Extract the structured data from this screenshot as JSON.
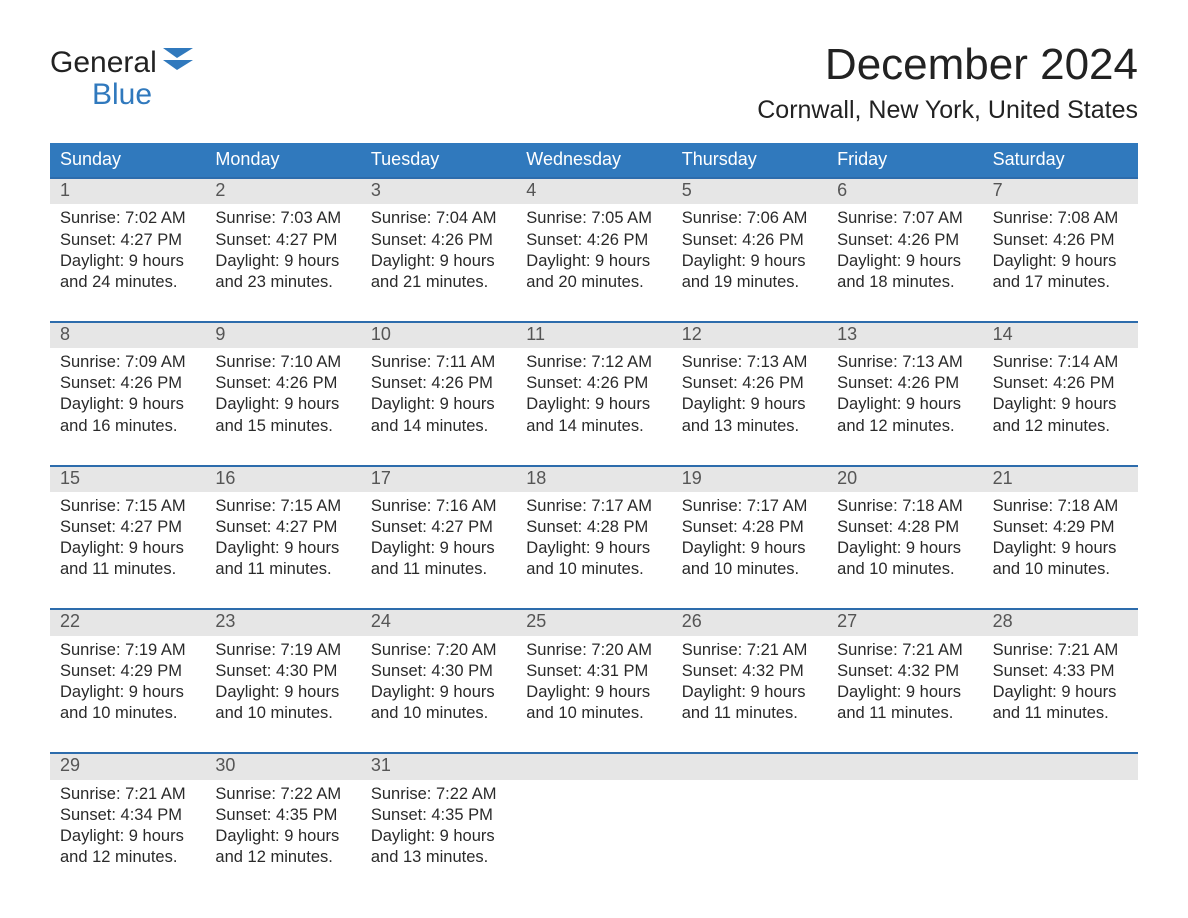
{
  "colors": {
    "accent": "#3079bd",
    "row_top_border": "#2d6cac",
    "date_bg": "#e6e6e6",
    "background": "#ffffff",
    "text": "#333333"
  },
  "typography": {
    "font_family": "Segoe UI / Arial",
    "month_title_fontsize": 44,
    "location_fontsize": 25,
    "dow_fontsize": 18,
    "cell_fontsize": 16.5
  },
  "logo": {
    "word1": "General",
    "word2": "Blue"
  },
  "header": {
    "month_title": "December 2024",
    "location": "Cornwall, New York, United States"
  },
  "days_of_week": [
    "Sunday",
    "Monday",
    "Tuesday",
    "Wednesday",
    "Thursday",
    "Friday",
    "Saturday"
  ],
  "weeks": [
    [
      {
        "date": "1",
        "sunrise": "Sunrise: 7:02 AM",
        "sunset": "Sunset: 4:27 PM",
        "day1": "Daylight: 9 hours",
        "day2": "and 24 minutes."
      },
      {
        "date": "2",
        "sunrise": "Sunrise: 7:03 AM",
        "sunset": "Sunset: 4:27 PM",
        "day1": "Daylight: 9 hours",
        "day2": "and 23 minutes."
      },
      {
        "date": "3",
        "sunrise": "Sunrise: 7:04 AM",
        "sunset": "Sunset: 4:26 PM",
        "day1": "Daylight: 9 hours",
        "day2": "and 21 minutes."
      },
      {
        "date": "4",
        "sunrise": "Sunrise: 7:05 AM",
        "sunset": "Sunset: 4:26 PM",
        "day1": "Daylight: 9 hours",
        "day2": "and 20 minutes."
      },
      {
        "date": "5",
        "sunrise": "Sunrise: 7:06 AM",
        "sunset": "Sunset: 4:26 PM",
        "day1": "Daylight: 9 hours",
        "day2": "and 19 minutes."
      },
      {
        "date": "6",
        "sunrise": "Sunrise: 7:07 AM",
        "sunset": "Sunset: 4:26 PM",
        "day1": "Daylight: 9 hours",
        "day2": "and 18 minutes."
      },
      {
        "date": "7",
        "sunrise": "Sunrise: 7:08 AM",
        "sunset": "Sunset: 4:26 PM",
        "day1": "Daylight: 9 hours",
        "day2": "and 17 minutes."
      }
    ],
    [
      {
        "date": "8",
        "sunrise": "Sunrise: 7:09 AM",
        "sunset": "Sunset: 4:26 PM",
        "day1": "Daylight: 9 hours",
        "day2": "and 16 minutes."
      },
      {
        "date": "9",
        "sunrise": "Sunrise: 7:10 AM",
        "sunset": "Sunset: 4:26 PM",
        "day1": "Daylight: 9 hours",
        "day2": "and 15 minutes."
      },
      {
        "date": "10",
        "sunrise": "Sunrise: 7:11 AM",
        "sunset": "Sunset: 4:26 PM",
        "day1": "Daylight: 9 hours",
        "day2": "and 14 minutes."
      },
      {
        "date": "11",
        "sunrise": "Sunrise: 7:12 AM",
        "sunset": "Sunset: 4:26 PM",
        "day1": "Daylight: 9 hours",
        "day2": "and 14 minutes."
      },
      {
        "date": "12",
        "sunrise": "Sunrise: 7:13 AM",
        "sunset": "Sunset: 4:26 PM",
        "day1": "Daylight: 9 hours",
        "day2": "and 13 minutes."
      },
      {
        "date": "13",
        "sunrise": "Sunrise: 7:13 AM",
        "sunset": "Sunset: 4:26 PM",
        "day1": "Daylight: 9 hours",
        "day2": "and 12 minutes."
      },
      {
        "date": "14",
        "sunrise": "Sunrise: 7:14 AM",
        "sunset": "Sunset: 4:26 PM",
        "day1": "Daylight: 9 hours",
        "day2": "and 12 minutes."
      }
    ],
    [
      {
        "date": "15",
        "sunrise": "Sunrise: 7:15 AM",
        "sunset": "Sunset: 4:27 PM",
        "day1": "Daylight: 9 hours",
        "day2": "and 11 minutes."
      },
      {
        "date": "16",
        "sunrise": "Sunrise: 7:15 AM",
        "sunset": "Sunset: 4:27 PM",
        "day1": "Daylight: 9 hours",
        "day2": "and 11 minutes."
      },
      {
        "date": "17",
        "sunrise": "Sunrise: 7:16 AM",
        "sunset": "Sunset: 4:27 PM",
        "day1": "Daylight: 9 hours",
        "day2": "and 11 minutes."
      },
      {
        "date": "18",
        "sunrise": "Sunrise: 7:17 AM",
        "sunset": "Sunset: 4:28 PM",
        "day1": "Daylight: 9 hours",
        "day2": "and 10 minutes."
      },
      {
        "date": "19",
        "sunrise": "Sunrise: 7:17 AM",
        "sunset": "Sunset: 4:28 PM",
        "day1": "Daylight: 9 hours",
        "day2": "and 10 minutes."
      },
      {
        "date": "20",
        "sunrise": "Sunrise: 7:18 AM",
        "sunset": "Sunset: 4:28 PM",
        "day1": "Daylight: 9 hours",
        "day2": "and 10 minutes."
      },
      {
        "date": "21",
        "sunrise": "Sunrise: 7:18 AM",
        "sunset": "Sunset: 4:29 PM",
        "day1": "Daylight: 9 hours",
        "day2": "and 10 minutes."
      }
    ],
    [
      {
        "date": "22",
        "sunrise": "Sunrise: 7:19 AM",
        "sunset": "Sunset: 4:29 PM",
        "day1": "Daylight: 9 hours",
        "day2": "and 10 minutes."
      },
      {
        "date": "23",
        "sunrise": "Sunrise: 7:19 AM",
        "sunset": "Sunset: 4:30 PM",
        "day1": "Daylight: 9 hours",
        "day2": "and 10 minutes."
      },
      {
        "date": "24",
        "sunrise": "Sunrise: 7:20 AM",
        "sunset": "Sunset: 4:30 PM",
        "day1": "Daylight: 9 hours",
        "day2": "and 10 minutes."
      },
      {
        "date": "25",
        "sunrise": "Sunrise: 7:20 AM",
        "sunset": "Sunset: 4:31 PM",
        "day1": "Daylight: 9 hours",
        "day2": "and 10 minutes."
      },
      {
        "date": "26",
        "sunrise": "Sunrise: 7:21 AM",
        "sunset": "Sunset: 4:32 PM",
        "day1": "Daylight: 9 hours",
        "day2": "and 11 minutes."
      },
      {
        "date": "27",
        "sunrise": "Sunrise: 7:21 AM",
        "sunset": "Sunset: 4:32 PM",
        "day1": "Daylight: 9 hours",
        "day2": "and 11 minutes."
      },
      {
        "date": "28",
        "sunrise": "Sunrise: 7:21 AM",
        "sunset": "Sunset: 4:33 PM",
        "day1": "Daylight: 9 hours",
        "day2": "and 11 minutes."
      }
    ],
    [
      {
        "date": "29",
        "sunrise": "Sunrise: 7:21 AM",
        "sunset": "Sunset: 4:34 PM",
        "day1": "Daylight: 9 hours",
        "day2": "and 12 minutes."
      },
      {
        "date": "30",
        "sunrise": "Sunrise: 7:22 AM",
        "sunset": "Sunset: 4:35 PM",
        "day1": "Daylight: 9 hours",
        "day2": "and 12 minutes."
      },
      {
        "date": "31",
        "sunrise": "Sunrise: 7:22 AM",
        "sunset": "Sunset: 4:35 PM",
        "day1": "Daylight: 9 hours",
        "day2": "and 13 minutes."
      },
      {
        "date": "",
        "sunrise": "",
        "sunset": "",
        "day1": "",
        "day2": "",
        "empty": true
      },
      {
        "date": "",
        "sunrise": "",
        "sunset": "",
        "day1": "",
        "day2": "",
        "empty": true
      },
      {
        "date": "",
        "sunrise": "",
        "sunset": "",
        "day1": "",
        "day2": "",
        "empty": true
      },
      {
        "date": "",
        "sunrise": "",
        "sunset": "",
        "day1": "",
        "day2": "",
        "empty": true
      }
    ]
  ]
}
